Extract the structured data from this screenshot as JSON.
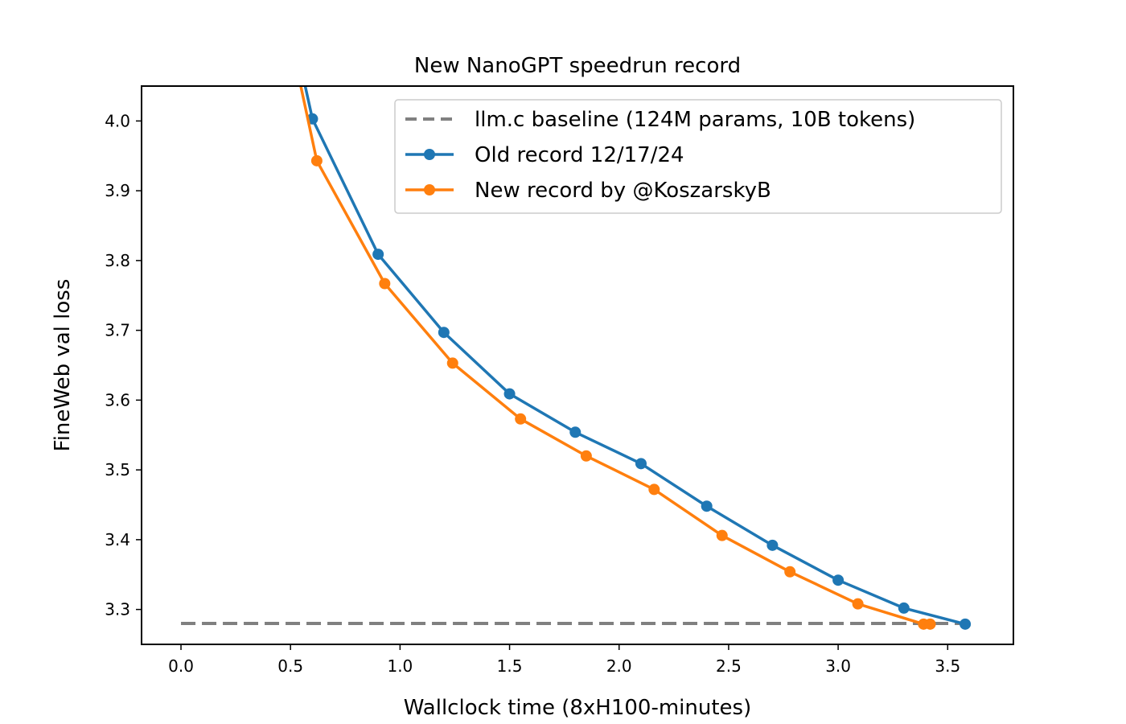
{
  "chart_data": {
    "type": "line",
    "title": "New NanoGPT speedrun record",
    "xlabel": "Wallclock time (8xH100-minutes)",
    "ylabel": "FineWeb val loss",
    "xlim": [
      -0.18,
      3.8
    ],
    "ylim": [
      3.25,
      4.05
    ],
    "xticks": [
      0.0,
      0.5,
      1.0,
      1.5,
      2.0,
      2.5,
      3.0,
      3.5
    ],
    "xtick_labels": [
      "0.0",
      "0.5",
      "1.0",
      "1.5",
      "2.0",
      "2.5",
      "3.0",
      "3.5"
    ],
    "yticks": [
      3.3,
      3.4,
      3.5,
      3.6,
      3.7,
      3.8,
      3.9,
      4.0
    ],
    "ytick_labels": [
      "3.3",
      "3.4",
      "3.5",
      "3.6",
      "3.7",
      "3.8",
      "3.9",
      "4.0"
    ],
    "grid": false,
    "legend_position": "top-right",
    "series": [
      {
        "name": "llm.c baseline (124M params, 10B tokens)",
        "style": "dashed",
        "markers": false,
        "color": "#808080",
        "x": [
          0.0,
          3.62
        ],
        "y": [
          3.28,
          3.28
        ]
      },
      {
        "name": "Old record 12/17/24",
        "style": "solid",
        "markers": true,
        "color": "#1f77b4",
        "x": [
          0.56,
          0.6,
          0.9,
          1.2,
          1.5,
          1.8,
          2.1,
          2.4,
          2.7,
          3.0,
          3.3,
          3.58
        ],
        "y": [
          4.06,
          4.003,
          3.809,
          3.697,
          3.609,
          3.554,
          3.509,
          3.448,
          3.392,
          3.342,
          3.302,
          3.279
        ]
      },
      {
        "name": "New record by @KoszarskyB",
        "style": "solid",
        "markers": true,
        "color": "#ff7f0e",
        "x": [
          0.54,
          0.62,
          0.93,
          1.24,
          1.55,
          1.85,
          2.16,
          2.47,
          2.78,
          3.09,
          3.39,
          3.42
        ],
        "y": [
          4.06,
          3.943,
          3.767,
          3.653,
          3.573,
          3.52,
          3.472,
          3.406,
          3.354,
          3.308,
          3.279,
          3.279
        ]
      }
    ]
  }
}
